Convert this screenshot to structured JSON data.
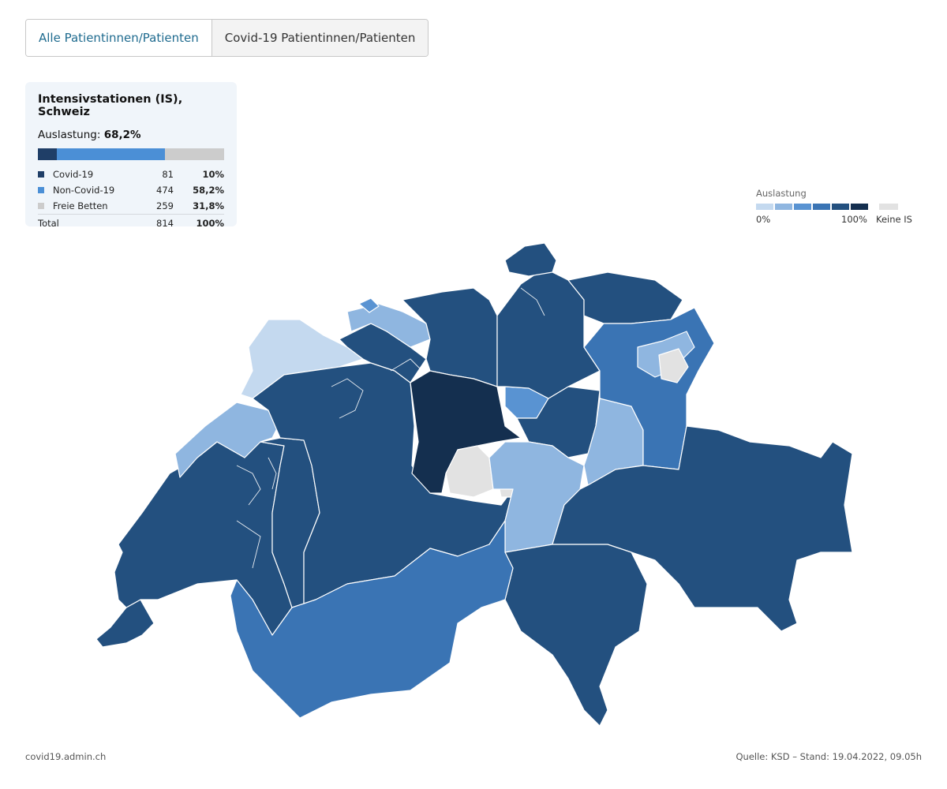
{
  "tabs": [
    {
      "label": "Alle Patientinnen/Patienten",
      "active": true
    },
    {
      "label": "Covid-19 Patientinnen/Patienten",
      "active": false
    }
  ],
  "summary": {
    "title": "Intensivstationen (IS), Schweiz",
    "occupancy_label": "Auslastung:",
    "occupancy_value": "68,2%",
    "bar_fractions": {
      "covid": 0.1,
      "non_covid": 0.582,
      "free": 0.318
    },
    "rows": [
      {
        "label": "Covid-19",
        "count": "81",
        "percent": "10%",
        "color": "#1f3e67"
      },
      {
        "label": "Non-Covid-19",
        "count": "474",
        "percent": "58,2%",
        "color": "#4b8fd6"
      },
      {
        "label": "Freie Betten",
        "count": "259",
        "percent": "31,8%",
        "color": "#cccccc"
      }
    ],
    "total": {
      "label": "Total",
      "count": "814",
      "percent": "100%"
    }
  },
  "scale": {
    "title": "Auslastung",
    "min_label": "0%",
    "max_label": "100%",
    "none_label": "Keine IS",
    "colors": [
      "#c4d9ef",
      "#8fb6e0",
      "#5993d2",
      "#3a74b4",
      "#23507f",
      "#142f4f"
    ],
    "none_color": "#e2e2e2"
  },
  "map_colors": {
    "c1": "#c4d9ef",
    "c2": "#8fb6e0",
    "c4": "#3a74b4",
    "c5": "#23507f",
    "c6": "#142f4f",
    "none": "#e2e2e2",
    "mid": "#5993d2"
  },
  "footer": {
    "left": "covid19.admin.ch",
    "right": "Quelle: KSD – Stand: 19.04.2022, 09.05h"
  }
}
